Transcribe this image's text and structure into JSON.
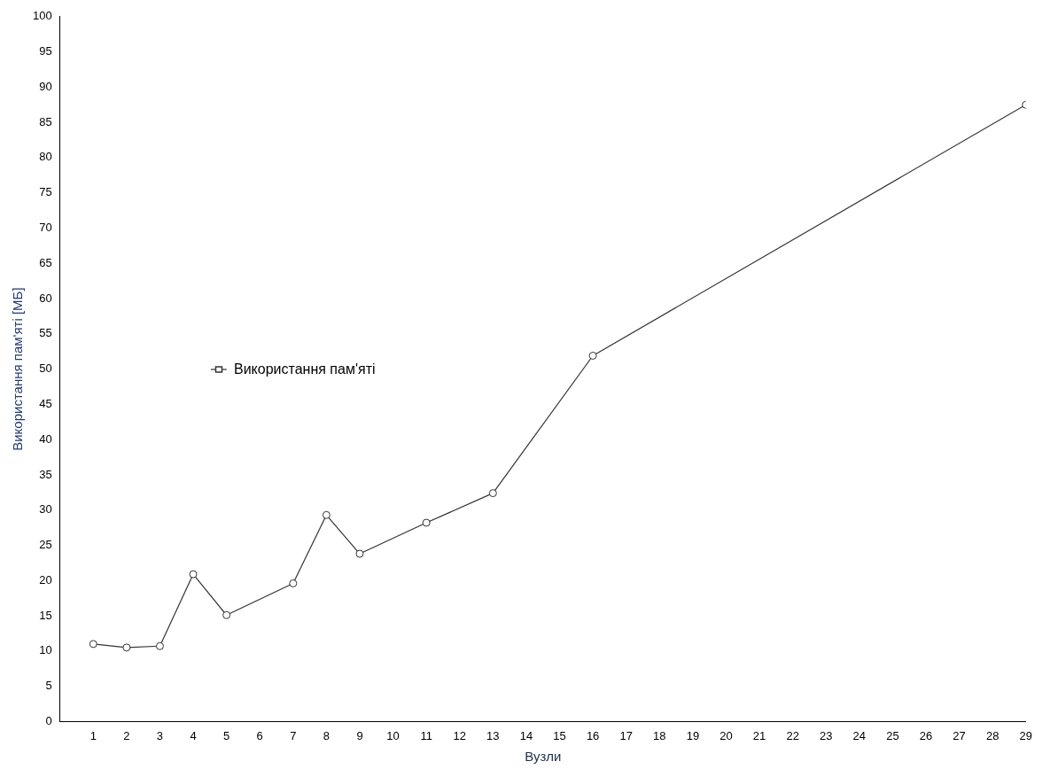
{
  "chart_data": {
    "type": "line",
    "xlabel": "Вузли",
    "ylabel": "Використання пам'яті [МБ]",
    "x": [
      1,
      2,
      3,
      4,
      5,
      7,
      8,
      9,
      11,
      13,
      16,
      29
    ],
    "series": [
      {
        "name": "Використання пам'яті",
        "color": "#333333",
        "values": [
          11,
          10.5,
          10.7,
          20.9,
          15.1,
          19.6,
          29.3,
          23.8,
          28.2,
          32.4,
          51.9,
          87.5
        ]
      }
    ],
    "xlim": [
      0,
      29
    ],
    "xticks": [
      1,
      2,
      3,
      4,
      5,
      6,
      7,
      8,
      9,
      10,
      11,
      12,
      13,
      14,
      15,
      16,
      17,
      18,
      19,
      20,
      21,
      22,
      23,
      24,
      25,
      26,
      27,
      28,
      29
    ],
    "ylim": [
      0,
      100
    ],
    "yticks": [
      0,
      5,
      10,
      15,
      20,
      25,
      30,
      35,
      40,
      45,
      50,
      55,
      60,
      65,
      70,
      75,
      80,
      85,
      90,
      95,
      100
    ],
    "grid": false,
    "legend": "left",
    "marker": "circle",
    "line_style": "solid"
  }
}
